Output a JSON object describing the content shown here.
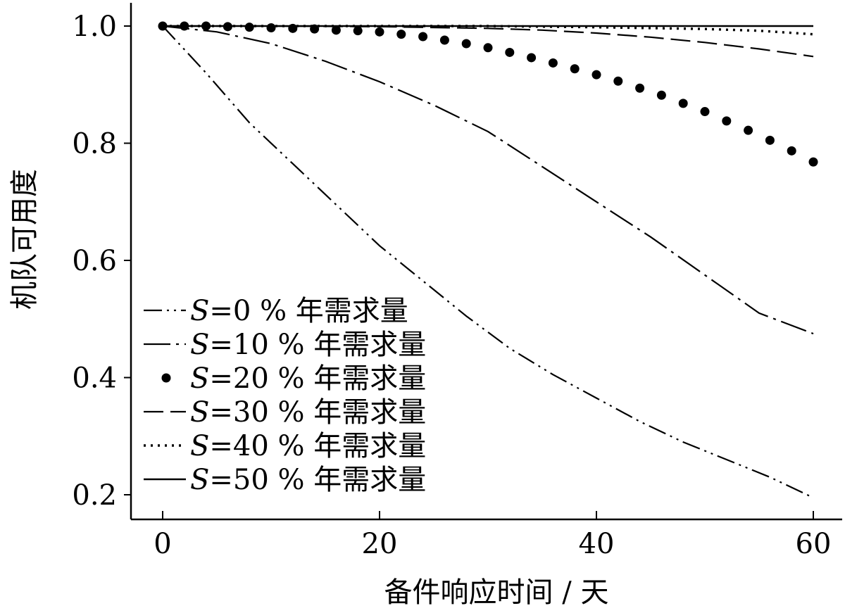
{
  "chart_data": {
    "type": "line",
    "xlabel": "备件响应时间 / 天",
    "ylabel": "机队可用度",
    "xlim": [
      -3,
      62
    ],
    "ylim": [
      0.16,
      1.04
    ],
    "xticks": [
      0,
      20,
      40,
      60
    ],
    "yticks": [
      0.2,
      0.4,
      0.6,
      0.8,
      1.0
    ],
    "xtick_labels": [
      "0",
      "20",
      "40",
      "60"
    ],
    "ytick_labels": [
      "0.2",
      "0.4",
      "0.6",
      "0.8",
      "1.0"
    ],
    "grid": false,
    "legend_position": "bottom-left",
    "series": [
      {
        "name": "S=0 % 年需求量",
        "name_var": "S",
        "name_rest": "=0 % 年需求量",
        "style": "dash-dot-dot",
        "x": [
          0,
          4,
          8,
          12,
          16,
          20,
          24,
          28,
          32,
          36,
          40,
          44,
          48,
          52,
          56,
          60
        ],
        "y": [
          1.0,
          0.92,
          0.835,
          0.765,
          0.695,
          0.625,
          0.565,
          0.505,
          0.45,
          0.405,
          0.365,
          0.325,
          0.29,
          0.26,
          0.23,
          0.195
        ]
      },
      {
        "name": "S=10 % 年需求量",
        "name_var": "S",
        "name_rest": "=10 % 年需求量",
        "style": "long-dash-dot",
        "x": [
          0,
          5,
          10,
          15,
          20,
          25,
          30,
          35,
          40,
          45,
          50,
          55,
          60
        ],
        "y": [
          1.0,
          0.99,
          0.97,
          0.94,
          0.905,
          0.865,
          0.82,
          0.76,
          0.7,
          0.64,
          0.575,
          0.51,
          0.475
        ]
      },
      {
        "name": "S=20 % 年需求量",
        "name_var": "S",
        "name_rest": "=20 % 年需求量",
        "style": "dots",
        "x": [
          0,
          2,
          4,
          6,
          8,
          10,
          12,
          14,
          16,
          18,
          20,
          22,
          24,
          26,
          28,
          30,
          32,
          34,
          36,
          38,
          40,
          42,
          44,
          46,
          48,
          50,
          52,
          54,
          56,
          58,
          60
        ],
        "y": [
          1.0,
          1.0,
          1.0,
          0.999,
          0.998,
          0.997,
          0.996,
          0.995,
          0.993,
          0.992,
          0.99,
          0.986,
          0.982,
          0.976,
          0.97,
          0.963,
          0.955,
          0.946,
          0.937,
          0.927,
          0.917,
          0.906,
          0.894,
          0.882,
          0.868,
          0.854,
          0.838,
          0.822,
          0.805,
          0.787,
          0.768
        ]
      },
      {
        "name": "S=30 % 年需求量",
        "name_var": "S",
        "name_rest": "=30 % 年需求量",
        "style": "dashed",
        "x": [
          0,
          10,
          20,
          30,
          35,
          40,
          45,
          50,
          55,
          60
        ],
        "y": [
          1.0,
          1.0,
          0.999,
          0.996,
          0.993,
          0.988,
          0.981,
          0.972,
          0.961,
          0.948
        ]
      },
      {
        "name": "S=40 % 年需求量",
        "name_var": "S",
        "name_rest": "=40 % 年需求量",
        "style": "dotted",
        "x": [
          0,
          10,
          20,
          30,
          40,
          50,
          55,
          60
        ],
        "y": [
          1.0,
          1.0,
          1.0,
          1.0,
          0.998,
          0.995,
          0.992,
          0.986
        ]
      },
      {
        "name": "S=50 % 年需求量",
        "name_var": "S",
        "name_rest": "=50 % 年需求量",
        "style": "solid",
        "x": [
          0,
          60
        ],
        "y": [
          1.0,
          1.0
        ]
      }
    ]
  }
}
